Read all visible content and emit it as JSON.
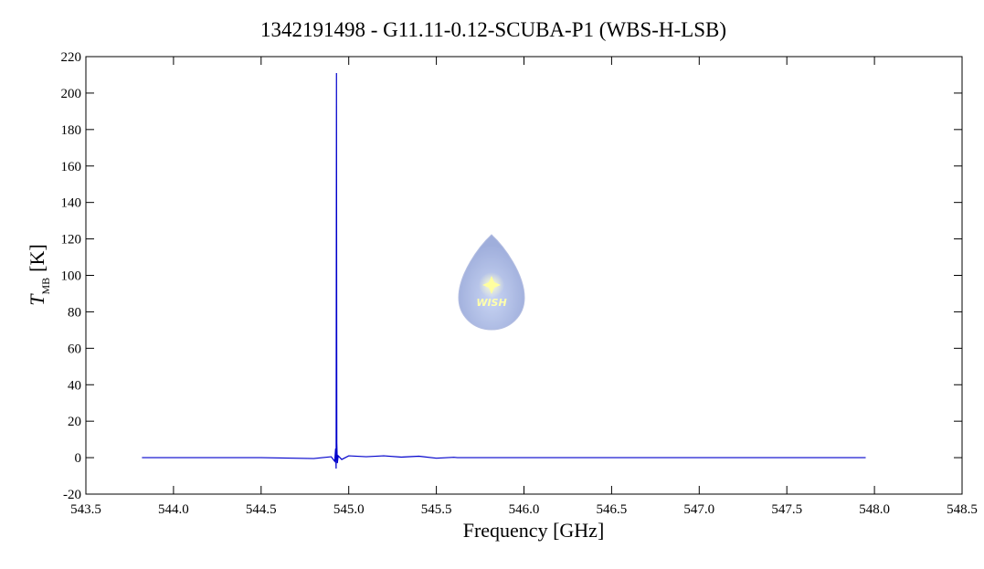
{
  "chart_data": {
    "type": "line",
    "title": "1342191498 - G11.11-0.12-SCUBA-P1 (WBS-H-LSB)",
    "x_label": "Frequency [GHz]",
    "y_label": {
      "symbol": "T",
      "subscript": "MB",
      "unit": "[K]"
    },
    "watermark": "WISH",
    "xlim": [
      543.5,
      548.5
    ],
    "ylim": [
      -20,
      220
    ],
    "xticks": [
      543.5,
      {
        "value": 544,
        "label": "544.0"
      },
      544.5,
      {
        "value": 545,
        "label": "545.0"
      },
      545.5,
      {
        "value": 546,
        "label": "546.0"
      },
      546.5,
      {
        "value": 547,
        "label": "547.0"
      },
      547.5,
      {
        "value": 548,
        "label": "548.0"
      },
      548.5
    ],
    "yticks": [
      -20,
      0,
      20,
      40,
      60,
      80,
      100,
      120,
      140,
      160,
      180,
      200,
      220
    ],
    "series": [
      {
        "name": "WBS-H-LSB",
        "color": "#0000cc",
        "x": [
          543.82,
          544.5,
          544.8,
          544.85,
          544.9,
          544.92,
          544.925,
          544.928,
          544.93,
          544.932,
          544.935,
          544.94,
          544.96,
          545.0,
          545.1,
          545.2,
          545.3,
          545.4,
          545.5,
          545.6,
          545.62,
          546.0,
          547.0,
          547.95
        ],
        "values": [
          0,
          0,
          -0.5,
          0,
          0.5,
          -2,
          5,
          -6,
          211,
          8,
          -3,
          1,
          -1,
          1,
          0.5,
          1,
          0.3,
          0.8,
          -0.3,
          0.2,
          0,
          0,
          0,
          0
        ]
      }
    ]
  }
}
